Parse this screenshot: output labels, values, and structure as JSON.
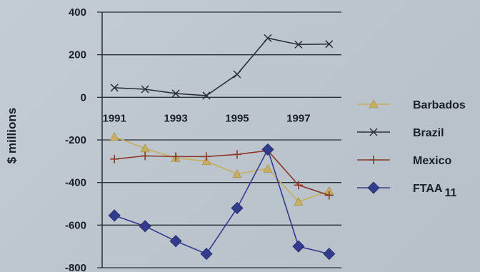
{
  "chart_data": {
    "type": "line",
    "title": "",
    "ylabel": "$ millions",
    "xlabel": "",
    "ylim": [
      -800,
      400
    ],
    "yticks": [
      400,
      200,
      0,
      -200,
      -400,
      -600,
      -800
    ],
    "ytick_labels": [
      "400",
      "200",
      "0",
      "-200",
      "-400",
      "-600",
      "-800"
    ],
    "xlim": [
      1990.6,
      1998.4
    ],
    "x": [
      1991,
      1992,
      1993,
      1994,
      1995,
      1996,
      1997,
      1998
    ],
    "xtick_values": [
      1991,
      1993,
      1995,
      1997
    ],
    "xtick_labels": [
      "1991",
      "1993",
      "1995",
      "1997"
    ],
    "grid": "horizontal",
    "legend_position": "right",
    "series": [
      {
        "name": "Barbados",
        "marker": "triangle",
        "color": "#c8ae5e",
        "values": [
          -185,
          -240,
          -285,
          -300,
          -360,
          -335,
          -490,
          -440
        ]
      },
      {
        "name": "Brazil",
        "marker": "x",
        "color": "#2b2f36",
        "values": [
          45,
          38,
          18,
          8,
          108,
          278,
          248,
          250
        ]
      },
      {
        "name": "Mexico",
        "marker": "plus",
        "color": "#8b3a2c",
        "values": [
          -290,
          -275,
          -278,
          -278,
          -268,
          -250,
          -412,
          -460
        ]
      },
      {
        "name": "FTAA",
        "subscript": "11",
        "marker": "diamond",
        "color": "#333c8c",
        "values": [
          -555,
          -605,
          -675,
          -735,
          -520,
          -245,
          -700,
          -735
        ]
      }
    ]
  }
}
